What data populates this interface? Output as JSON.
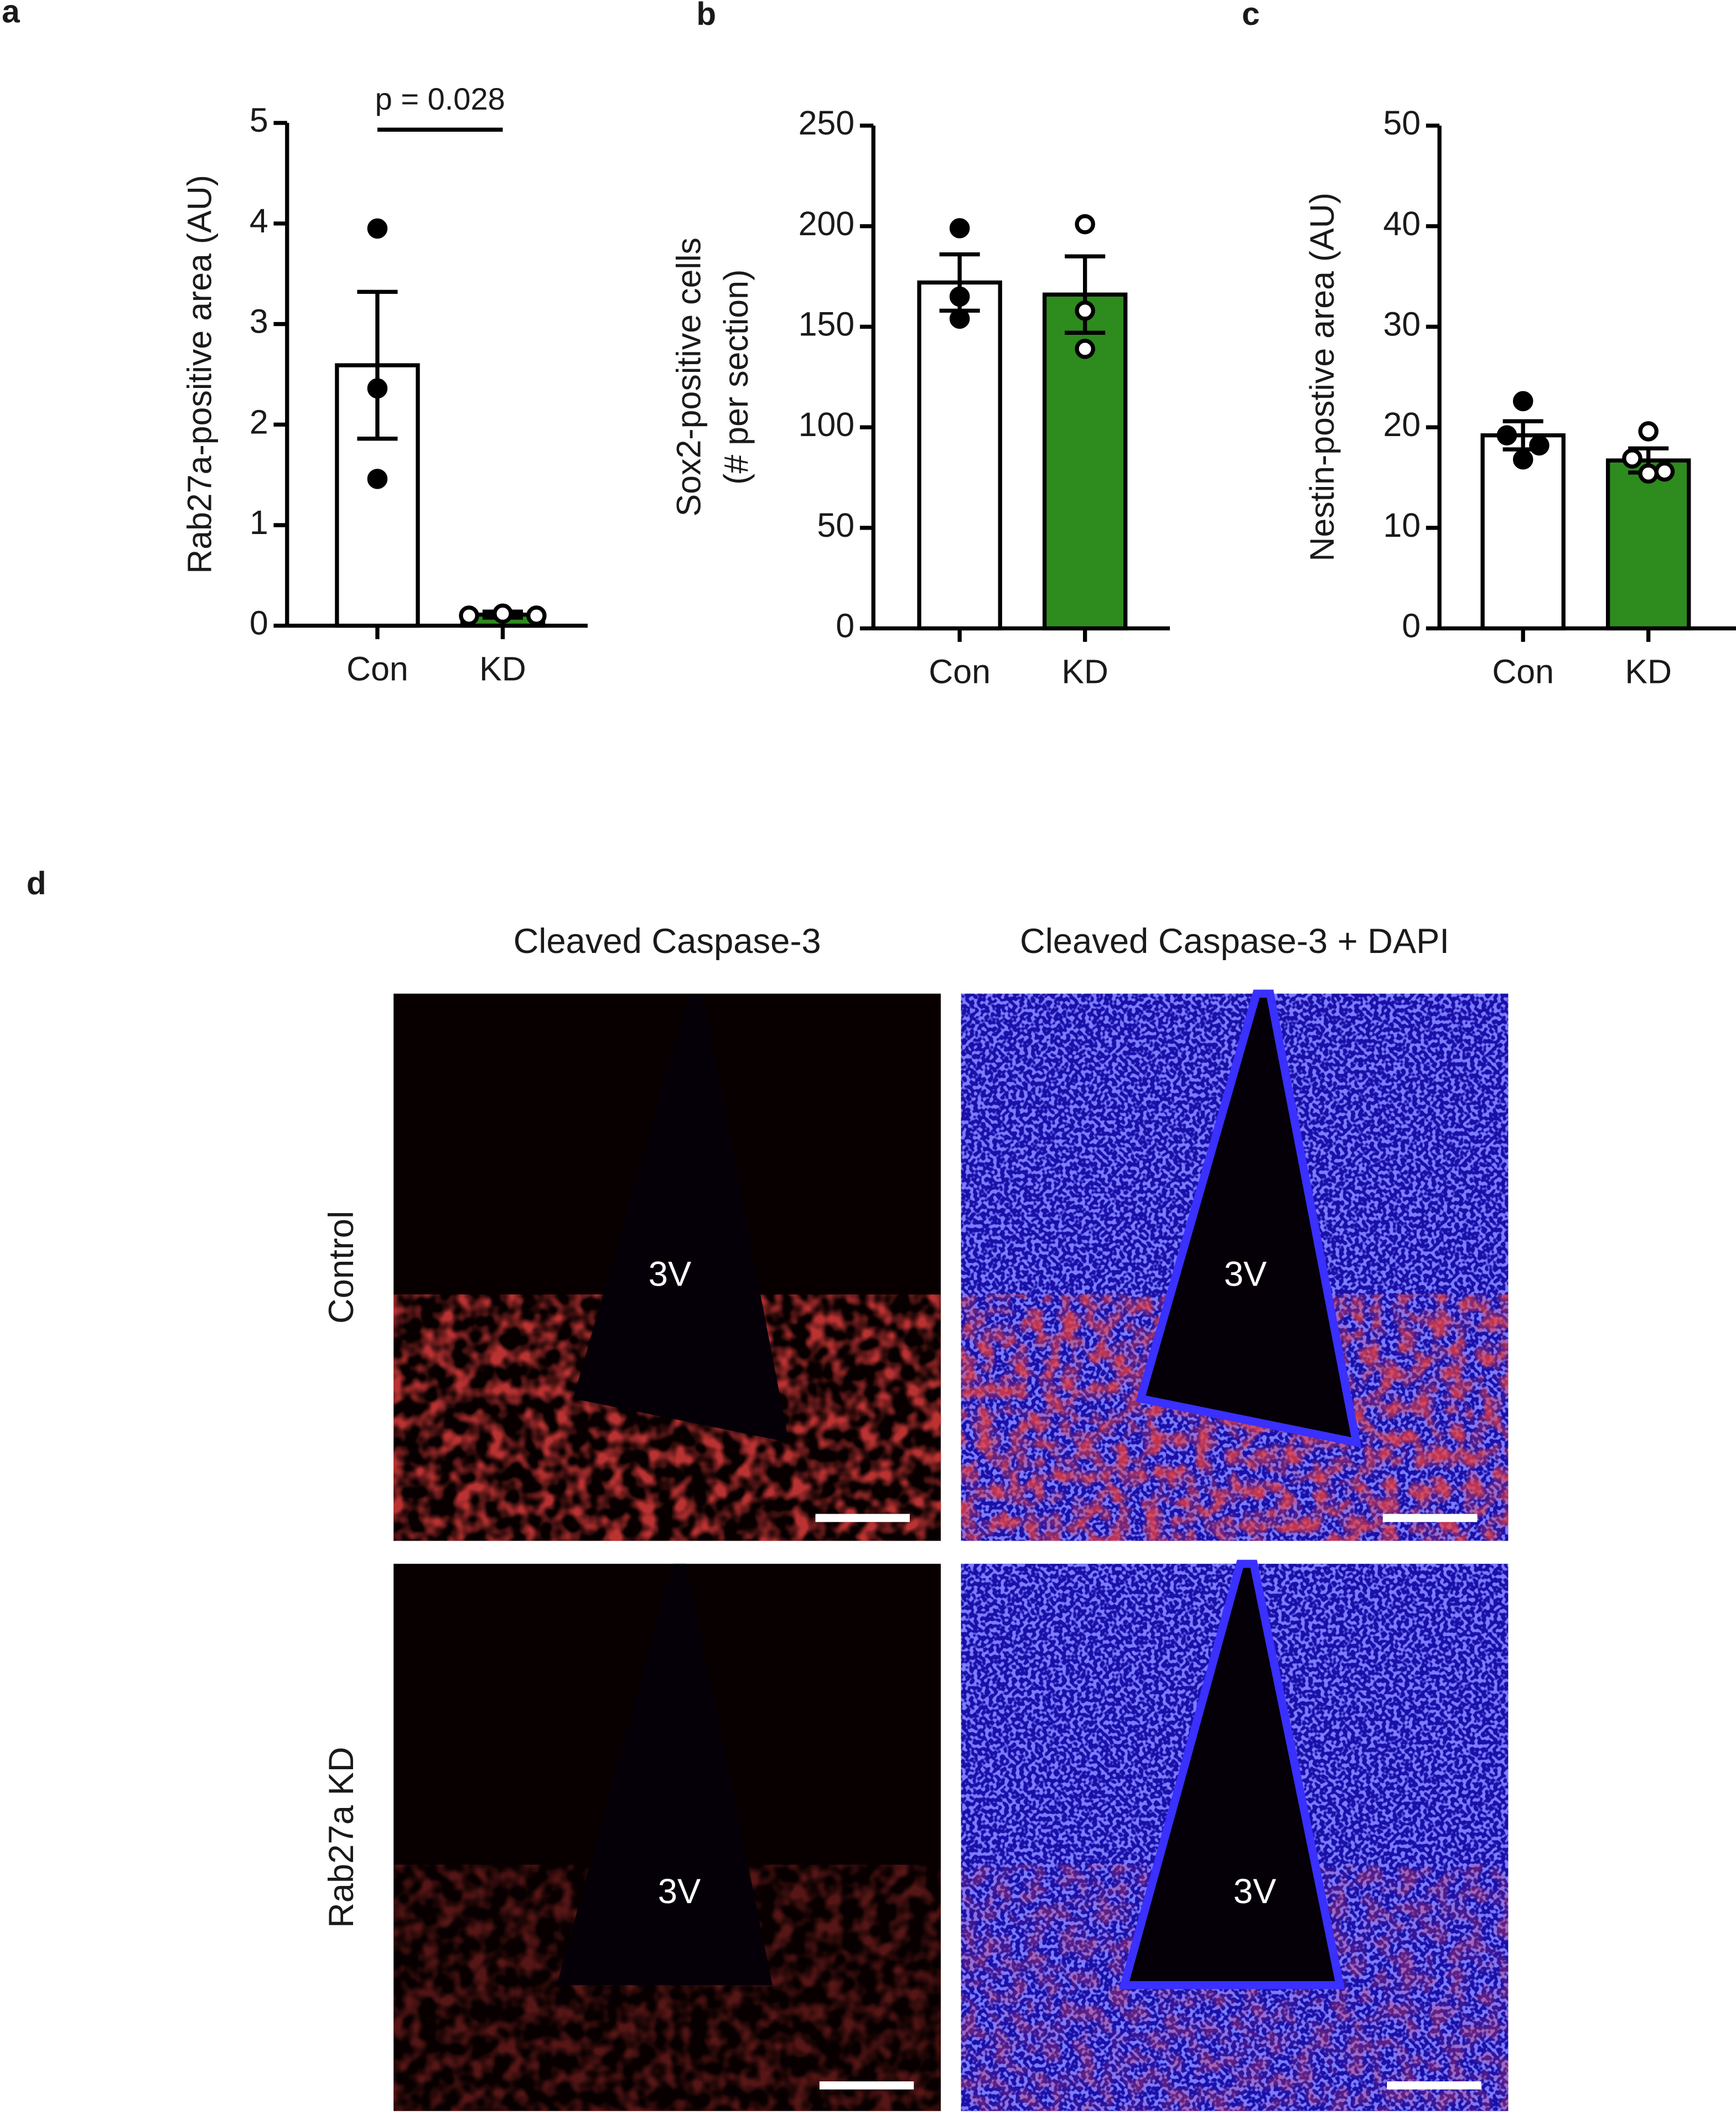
{
  "chart_data": [
    {
      "type": "bar",
      "panel_label": "a",
      "ylabel": [
        "Rab27a-positive area (AU)"
      ],
      "categories": [
        "Con",
        "KD"
      ],
      "values": [
        2.59,
        0.11
      ],
      "errors": [
        0.73,
        0.03
      ],
      "points": [
        [
          3.95,
          2.36,
          1.46
        ],
        [
          0.1,
          0.12,
          0.1
        ]
      ],
      "colors": [
        "#ffffff",
        "#2e8b1e"
      ],
      "point_fills": [
        "#000000",
        "#ffffff"
      ],
      "annotation": "p = 0.028",
      "ylim": [
        0,
        5
      ],
      "yticks": [
        0,
        1,
        2,
        3,
        4,
        5
      ]
    },
    {
      "type": "bar",
      "panel_label": "b",
      "ylabel": [
        "Sox2-positive cells",
        "(# per section)"
      ],
      "categories": [
        "Con",
        "KD"
      ],
      "values": [
        172,
        166
      ],
      "errors": [
        14,
        19
      ],
      "points": [
        [
          199,
          165,
          154
        ],
        [
          201,
          158,
          139
        ]
      ],
      "colors": [
        "#ffffff",
        "#2e8b1e"
      ],
      "point_fills": [
        "#000000",
        "#ffffff"
      ],
      "ylim": [
        0,
        250
      ],
      "yticks": [
        0,
        50,
        100,
        150,
        200,
        250
      ]
    },
    {
      "type": "bar",
      "panel_label": "c",
      "ylabel": [
        "Nestin-postive area (AU)"
      ],
      "categories": [
        "Con",
        "KD"
      ],
      "values": [
        19.2,
        16.7
      ],
      "errors": [
        1.4,
        1.2
      ],
      "points": [
        [
          22.6,
          19.2,
          18.2,
          16.8
        ],
        [
          19.6,
          16.9,
          15.6,
          15.4
        ]
      ],
      "colors": [
        "#ffffff",
        "#2e8b1e"
      ],
      "point_fills": [
        "#000000",
        "#ffffff"
      ],
      "ylim": [
        0,
        50
      ],
      "yticks": [
        0,
        10,
        20,
        30,
        40,
        50
      ]
    }
  ],
  "images": {
    "panel_label": "d",
    "columns": [
      "Cleaved Caspase-3",
      "Cleaved Caspase-3 + DAPI"
    ],
    "rows": [
      "Control",
      "Rab27a KD"
    ],
    "cells": [
      [
        "3V",
        "3V"
      ],
      [
        "3V",
        "3V"
      ]
    ]
  }
}
